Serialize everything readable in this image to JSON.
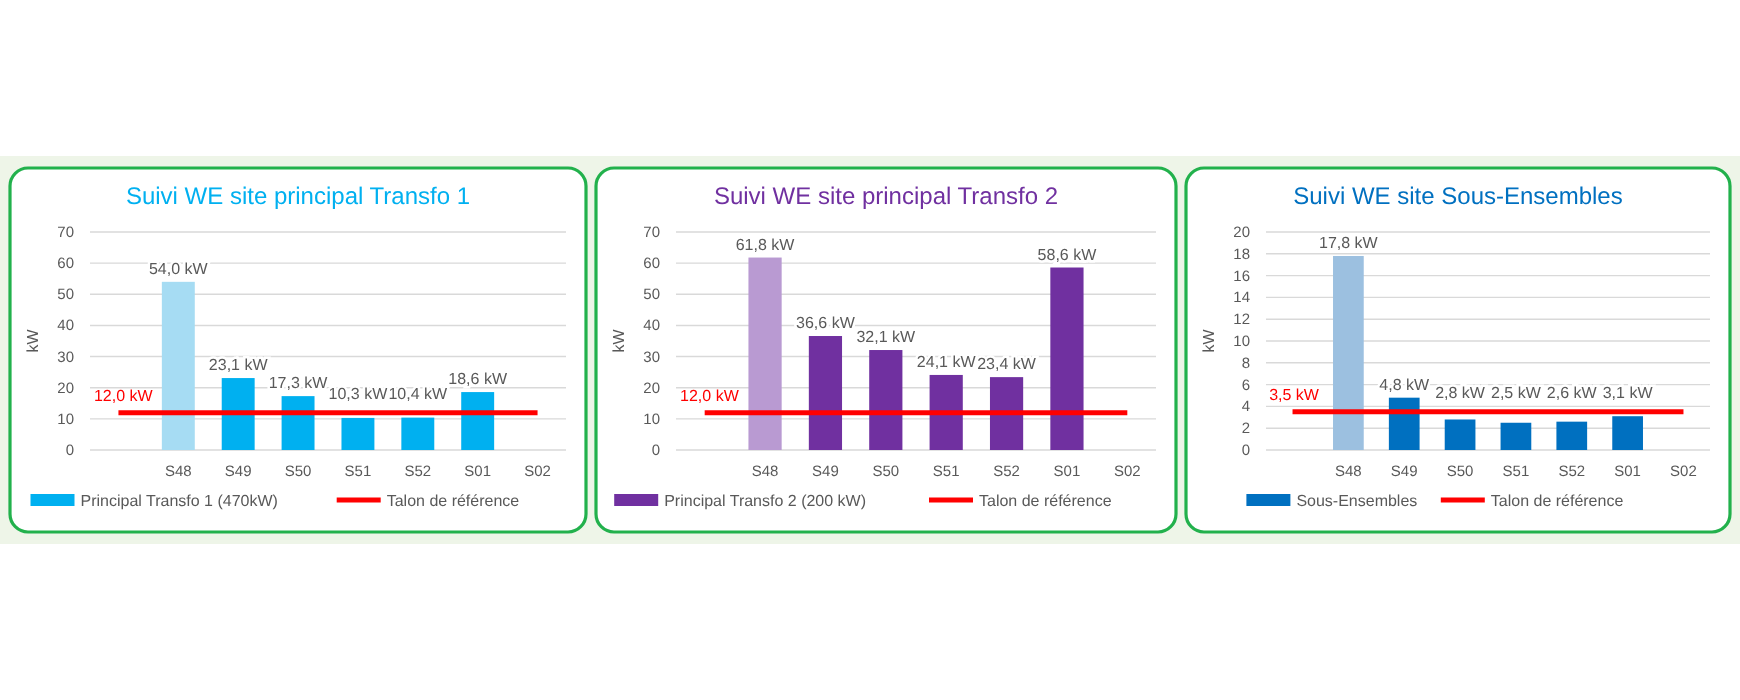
{
  "chart_data": [
    {
      "type": "bar",
      "title": "Suivi WE site principal Transfo 1",
      "ylabel": "kW",
      "categories": [
        null,
        "S48",
        "S49",
        "S50",
        "S51",
        "S52",
        "S01",
        "S02"
      ],
      "ylim": [
        0,
        70
      ],
      "yticks": [
        0,
        10,
        20,
        30,
        40,
        50,
        60,
        70
      ],
      "grid": "y",
      "legend": "bottom",
      "series": [
        {
          "name": "Principal Transfo 1 (470kW)",
          "color": "#00b0f0",
          "colors": [
            null,
            "#a6dcf3",
            "#00b0f0",
            "#00b0f0",
            "#00b0f0",
            "#00b0f0",
            "#00b0f0",
            null
          ],
          "values": [
            null,
            54.0,
            23.1,
            17.3,
            10.3,
            10.4,
            18.6,
            null
          ],
          "value_labels": [
            null,
            "54,0 kW",
            "23,1 kW",
            "17,3 kW",
            "10,3 kW",
            "10,4 kW",
            "18,6 kW",
            null
          ]
        },
        {
          "name": "Talon de référence",
          "type": "line",
          "color": "#ff0000",
          "values": [
            12.0,
            12.0,
            12.0,
            12.0,
            12.0,
            12.0,
            12.0,
            12.0
          ],
          "value_labels": [
            "12,0 kW",
            null,
            null,
            null,
            null,
            null,
            null,
            null
          ]
        }
      ]
    },
    {
      "type": "bar",
      "title": "Suivi WE site principal Transfo 2",
      "ylabel": "kW",
      "categories": [
        null,
        "S48",
        "S49",
        "S50",
        "S51",
        "S52",
        "S01",
        "S02"
      ],
      "ylim": [
        0,
        70
      ],
      "yticks": [
        0,
        10,
        20,
        30,
        40,
        50,
        60,
        70
      ],
      "grid": "y",
      "legend": "bottom",
      "series": [
        {
          "name": "Principal Transfo 2 (200 kW)",
          "color": "#7030a0",
          "colors": [
            null,
            "#b99ad2",
            "#7030a0",
            "#7030a0",
            "#7030a0",
            "#7030a0",
            "#7030a0",
            null
          ],
          "values": [
            null,
            61.8,
            36.6,
            32.1,
            24.1,
            23.4,
            58.6,
            null
          ],
          "value_labels": [
            null,
            "61,8 kW",
            "36,6 kW",
            "32,1 kW",
            "24,1 kW",
            "23,4 kW",
            "58,6 kW",
            null
          ]
        },
        {
          "name": "Talon de référence",
          "type": "line",
          "color": "#ff0000",
          "values": [
            12.0,
            12.0,
            12.0,
            12.0,
            12.0,
            12.0,
            12.0,
            12.0
          ],
          "value_labels": [
            "12,0 kW",
            null,
            null,
            null,
            null,
            null,
            null,
            null
          ]
        }
      ]
    },
    {
      "type": "bar",
      "title": "Suivi WE site Sous-Ensembles",
      "ylabel": "kW",
      "categories": [
        null,
        "S48",
        "S49",
        "S50",
        "S51",
        "S52",
        "S01",
        "S02"
      ],
      "ylim": [
        0,
        20
      ],
      "yticks": [
        0,
        2,
        4,
        6,
        8,
        10,
        12,
        14,
        16,
        18,
        20
      ],
      "grid": "y",
      "legend": "bottom",
      "series": [
        {
          "name": "Sous-Ensembles",
          "color": "#0070c0",
          "colors": [
            null,
            "#9cc0e0",
            "#0070c0",
            "#0070c0",
            "#0070c0",
            "#0070c0",
            "#0070c0",
            null
          ],
          "values": [
            null,
            17.8,
            4.8,
            2.8,
            2.5,
            2.6,
            3.1,
            null
          ],
          "value_labels": [
            null,
            "17,8 kW",
            "4,8 kW",
            "2,8 kW",
            "2,5 kW",
            "2,6 kW",
            "3,1 kW",
            null
          ]
        },
        {
          "name": "Talon de référence",
          "type": "line",
          "color": "#ff0000",
          "values": [
            3.5,
            3.5,
            3.5,
            3.5,
            3.5,
            3.5,
            3.5,
            3.5
          ],
          "value_labels": [
            "3,5 kW",
            null,
            null,
            null,
            null,
            null,
            null,
            null
          ]
        }
      ]
    }
  ]
}
